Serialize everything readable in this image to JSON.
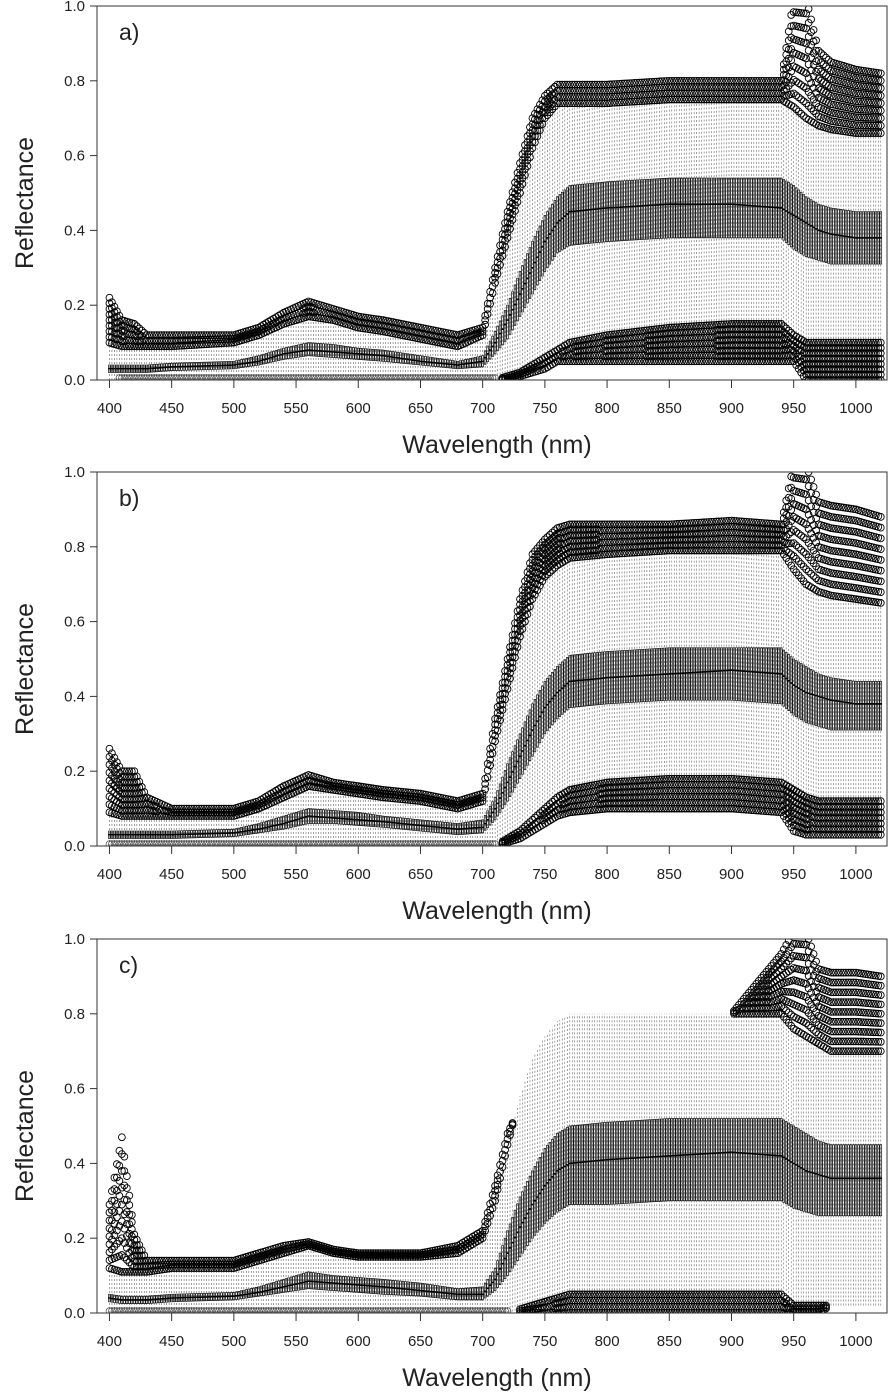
{
  "chart_data": [
    {
      "type": "box",
      "panel_label": "a)",
      "xlabel": "Wavelength (nm)",
      "ylabel": "Reflectance",
      "xlim": [
        390,
        1025
      ],
      "ylim": [
        0,
        1.0
      ],
      "x_ticks": [
        400,
        450,
        500,
        550,
        600,
        650,
        700,
        750,
        800,
        850,
        900,
        950,
        1000
      ],
      "y_ticks": [
        0.0,
        0.2,
        0.4,
        0.6,
        0.8,
        1.0
      ],
      "x_tick_labels": [
        "400",
        "450",
        "500",
        "550",
        "600",
        "650",
        "700",
        "750",
        "800",
        "850",
        "900",
        "950",
        "1000"
      ],
      "y_tick_labels": [
        "0.0",
        "0.2",
        "0.4",
        "0.6",
        "0.8",
        "1.0"
      ],
      "grid": false,
      "x": [
        400,
        410,
        420,
        430,
        450,
        500,
        520,
        540,
        560,
        580,
        600,
        620,
        650,
        680,
        700,
        710,
        720,
        730,
        740,
        750,
        760,
        770,
        800,
        850,
        900,
        940,
        950,
        960,
        970,
        980,
        1000,
        1020
      ],
      "median": [
        0.03,
        0.03,
        0.03,
        0.03,
        0.035,
        0.04,
        0.05,
        0.07,
        0.08,
        0.075,
        0.07,
        0.065,
        0.05,
        0.04,
        0.05,
        0.1,
        0.16,
        0.23,
        0.3,
        0.37,
        0.42,
        0.45,
        0.46,
        0.47,
        0.47,
        0.46,
        0.44,
        0.42,
        0.4,
        0.39,
        0.38,
        0.38
      ],
      "q1": [
        0.02,
        0.02,
        0.02,
        0.02,
        0.025,
        0.03,
        0.04,
        0.055,
        0.065,
        0.06,
        0.055,
        0.05,
        0.04,
        0.03,
        0.035,
        0.07,
        0.11,
        0.17,
        0.23,
        0.29,
        0.34,
        0.36,
        0.37,
        0.38,
        0.38,
        0.38,
        0.35,
        0.33,
        0.32,
        0.31,
        0.31,
        0.31
      ],
      "q3": [
        0.04,
        0.04,
        0.04,
        0.04,
        0.045,
        0.05,
        0.065,
        0.085,
        0.1,
        0.095,
        0.085,
        0.08,
        0.065,
        0.05,
        0.065,
        0.13,
        0.2,
        0.29,
        0.37,
        0.44,
        0.49,
        0.52,
        0.53,
        0.54,
        0.54,
        0.54,
        0.52,
        0.49,
        0.47,
        0.46,
        0.45,
        0.45
      ],
      "whisker_low": [
        0.0,
        0.0,
        0.0,
        0.0,
        0.0,
        0.0,
        0.0,
        0.0,
        0.0,
        0.0,
        0.0,
        0.0,
        0.0,
        0.0,
        0.0,
        0.0,
        0.01,
        0.02,
        0.04,
        0.06,
        0.08,
        0.1,
        0.12,
        0.14,
        0.15,
        0.15,
        0.12,
        0.1,
        0.1,
        0.1,
        0.1,
        0.1
      ],
      "whisker_high": [
        0.1,
        0.09,
        0.09,
        0.09,
        0.09,
        0.1,
        0.12,
        0.15,
        0.17,
        0.16,
        0.14,
        0.13,
        0.11,
        0.09,
        0.12,
        0.26,
        0.38,
        0.5,
        0.62,
        0.7,
        0.74,
        0.74,
        0.74,
        0.75,
        0.75,
        0.75,
        0.73,
        0.7,
        0.68,
        0.67,
        0.66,
        0.66
      ],
      "outliers_high": [
        0.22,
        0.16,
        0.15,
        0.12,
        0.12,
        0.12,
        0.14,
        0.18,
        0.21,
        0.19,
        0.17,
        0.16,
        0.14,
        0.12,
        0.14,
        0.3,
        0.45,
        0.58,
        0.7,
        0.76,
        0.79,
        0.79,
        0.79,
        0.8,
        0.8,
        0.8,
        1.02,
        1.02,
        0.88,
        0.85,
        0.83,
        0.82
      ],
      "outliers_low": [
        0.1,
        0.0,
        0.0,
        0.0,
        0.0,
        0.0,
        0.0,
        0.0,
        0.0,
        0.0,
        0.0,
        0.0,
        0.0,
        0.0,
        0.0,
        0.0,
        0.0,
        0.01,
        0.02,
        0.03,
        0.05,
        0.05,
        0.05,
        0.05,
        0.05,
        0.05,
        0.05,
        0.0,
        0.0,
        0.0,
        0.0,
        0.0
      ]
    },
    {
      "type": "box",
      "panel_label": "b)",
      "xlabel": "Wavelength (nm)",
      "ylabel": "Reflectance",
      "xlim": [
        390,
        1025
      ],
      "ylim": [
        0,
        1.0
      ],
      "x_ticks": [
        400,
        450,
        500,
        550,
        600,
        650,
        700,
        750,
        800,
        850,
        900,
        950,
        1000
      ],
      "y_ticks": [
        0.0,
        0.2,
        0.4,
        0.6,
        0.8,
        1.0
      ],
      "x_tick_labels": [
        "400",
        "450",
        "500",
        "550",
        "600",
        "650",
        "700",
        "750",
        "800",
        "850",
        "900",
        "950",
        "1000"
      ],
      "y_tick_labels": [
        "0.0",
        "0.2",
        "0.4",
        "0.6",
        "0.8",
        "1.0"
      ],
      "grid": false,
      "x": [
        400,
        410,
        420,
        430,
        450,
        500,
        520,
        540,
        560,
        580,
        600,
        620,
        650,
        680,
        700,
        710,
        720,
        730,
        740,
        750,
        760,
        770,
        800,
        850,
        900,
        940,
        950,
        960,
        970,
        980,
        1000,
        1020
      ],
      "median": [
        0.03,
        0.03,
        0.03,
        0.03,
        0.03,
        0.035,
        0.045,
        0.06,
        0.08,
        0.075,
        0.07,
        0.065,
        0.055,
        0.045,
        0.05,
        0.1,
        0.17,
        0.24,
        0.31,
        0.37,
        0.41,
        0.44,
        0.45,
        0.46,
        0.47,
        0.46,
        0.43,
        0.41,
        0.4,
        0.39,
        0.38,
        0.38
      ],
      "q1": [
        0.02,
        0.02,
        0.02,
        0.02,
        0.02,
        0.025,
        0.035,
        0.045,
        0.06,
        0.06,
        0.055,
        0.05,
        0.04,
        0.03,
        0.035,
        0.07,
        0.12,
        0.18,
        0.24,
        0.3,
        0.34,
        0.37,
        0.38,
        0.39,
        0.39,
        0.38,
        0.35,
        0.33,
        0.32,
        0.31,
        0.31,
        0.31
      ],
      "q3": [
        0.04,
        0.04,
        0.04,
        0.04,
        0.04,
        0.045,
        0.06,
        0.08,
        0.1,
        0.095,
        0.09,
        0.08,
        0.07,
        0.06,
        0.07,
        0.13,
        0.22,
        0.3,
        0.38,
        0.44,
        0.48,
        0.51,
        0.52,
        0.53,
        0.53,
        0.53,
        0.5,
        0.48,
        0.46,
        0.45,
        0.44,
        0.44
      ],
      "whisker_low": [
        0.0,
        0.0,
        0.0,
        0.0,
        0.0,
        0.0,
        0.0,
        0.0,
        0.0,
        0.0,
        0.0,
        0.0,
        0.0,
        0.0,
        0.0,
        0.0,
        0.02,
        0.04,
        0.07,
        0.1,
        0.13,
        0.15,
        0.17,
        0.18,
        0.18,
        0.17,
        0.15,
        0.13,
        0.12,
        0.12,
        0.12,
        0.12
      ],
      "whisker_high": [
        0.09,
        0.08,
        0.08,
        0.08,
        0.08,
        0.08,
        0.1,
        0.13,
        0.16,
        0.15,
        0.14,
        0.13,
        0.12,
        0.1,
        0.12,
        0.28,
        0.42,
        0.56,
        0.66,
        0.72,
        0.75,
        0.77,
        0.78,
        0.79,
        0.79,
        0.79,
        0.74,
        0.7,
        0.68,
        0.67,
        0.66,
        0.65
      ],
      "outliers_high": [
        0.26,
        0.2,
        0.2,
        0.13,
        0.1,
        0.1,
        0.12,
        0.16,
        0.19,
        0.17,
        0.16,
        0.15,
        0.14,
        0.12,
        0.14,
        0.34,
        0.5,
        0.66,
        0.78,
        0.82,
        0.85,
        0.86,
        0.86,
        0.86,
        0.87,
        0.86,
        1.02,
        1.02,
        0.92,
        0.91,
        0.9,
        0.88
      ],
      "outliers_low": [
        0.0,
        0.0,
        0.0,
        0.0,
        0.0,
        0.0,
        0.0,
        0.0,
        0.0,
        0.0,
        0.0,
        0.0,
        0.0,
        0.0,
        0.0,
        0.0,
        0.01,
        0.02,
        0.04,
        0.06,
        0.08,
        0.09,
        0.1,
        0.1,
        0.1,
        0.09,
        0.04,
        0.03,
        0.03,
        0.03,
        0.03,
        0.03
      ]
    },
    {
      "type": "box",
      "panel_label": "c)",
      "xlabel": "Wavelength (nm)",
      "ylabel": "Reflectance",
      "xlim": [
        390,
        1025
      ],
      "ylim": [
        0,
        1.0
      ],
      "x_ticks": [
        400,
        450,
        500,
        550,
        600,
        650,
        700,
        750,
        800,
        850,
        900,
        950,
        1000
      ],
      "y_ticks": [
        0.0,
        0.2,
        0.4,
        0.6,
        0.8,
        1.0
      ],
      "x_tick_labels": [
        "400",
        "450",
        "500",
        "550",
        "600",
        "650",
        "700",
        "750",
        "800",
        "850",
        "900",
        "950",
        "1000"
      ],
      "y_tick_labels": [
        "0.0",
        "0.2",
        "0.4",
        "0.6",
        "0.8",
        "1.0"
      ],
      "grid": false,
      "x": [
        400,
        410,
        420,
        430,
        450,
        500,
        520,
        540,
        560,
        580,
        600,
        620,
        650,
        680,
        700,
        710,
        720,
        730,
        740,
        750,
        760,
        770,
        800,
        850,
        900,
        940,
        950,
        960,
        970,
        980,
        1000,
        1020
      ],
      "median": [
        0.04,
        0.035,
        0.035,
        0.035,
        0.04,
        0.045,
        0.055,
        0.07,
        0.085,
        0.08,
        0.075,
        0.07,
        0.06,
        0.05,
        0.05,
        0.09,
        0.16,
        0.23,
        0.29,
        0.34,
        0.38,
        0.4,
        0.41,
        0.42,
        0.43,
        0.42,
        0.4,
        0.38,
        0.37,
        0.36,
        0.36,
        0.36
      ],
      "q1": [
        0.03,
        0.025,
        0.025,
        0.025,
        0.03,
        0.035,
        0.045,
        0.055,
        0.065,
        0.06,
        0.055,
        0.05,
        0.045,
        0.035,
        0.035,
        0.06,
        0.1,
        0.15,
        0.2,
        0.24,
        0.27,
        0.29,
        0.29,
        0.3,
        0.3,
        0.3,
        0.28,
        0.27,
        0.26,
        0.26,
        0.26,
        0.26
      ],
      "q3": [
        0.05,
        0.045,
        0.045,
        0.045,
        0.05,
        0.055,
        0.07,
        0.09,
        0.11,
        0.1,
        0.095,
        0.09,
        0.08,
        0.065,
        0.07,
        0.12,
        0.22,
        0.31,
        0.38,
        0.44,
        0.48,
        0.5,
        0.51,
        0.52,
        0.52,
        0.52,
        0.5,
        0.48,
        0.46,
        0.45,
        0.45,
        0.45
      ],
      "whisker_low": [
        0.0,
        0.0,
        0.0,
        0.0,
        0.0,
        0.0,
        0.0,
        0.0,
        0.0,
        0.0,
        0.0,
        0.0,
        0.0,
        0.0,
        0.0,
        0.0,
        0.0,
        0.01,
        0.02,
        0.03,
        0.04,
        0.05,
        0.05,
        0.05,
        0.05,
        0.05,
        0.02,
        0.02,
        0.02,
        0.02,
        0.02,
        0.02
      ],
      "whisker_high": [
        0.12,
        0.11,
        0.11,
        0.11,
        0.12,
        0.12,
        0.14,
        0.16,
        0.18,
        0.16,
        0.15,
        0.15,
        0.15,
        0.16,
        0.2,
        0.3,
        0.45,
        0.58,
        0.68,
        0.74,
        0.78,
        0.8,
        0.8,
        0.8,
        0.8,
        0.8,
        0.76,
        0.74,
        0.72,
        0.7,
        0.7,
        0.7
      ],
      "outliers_high": [
        0.29,
        0.47,
        0.21,
        0.14,
        0.14,
        0.14,
        0.16,
        0.18,
        0.19,
        0.17,
        0.16,
        0.16,
        0.16,
        0.18,
        0.22,
        0.34,
        0.48,
        0.55,
        0.6,
        0.74,
        0.78,
        0.8,
        0.8,
        0.8,
        0.8,
        0.96,
        1.02,
        1.02,
        0.92,
        0.91,
        0.91,
        0.9
      ],
      "outliers_low": [
        0.0,
        0.0,
        0.0,
        0.0,
        0.0,
        0.0,
        0.0,
        0.0,
        0.0,
        0.0,
        0.0,
        0.0,
        0.0,
        0.0,
        0.0,
        0.02,
        0.02,
        0.0,
        0.0,
        0.0,
        0.0,
        0.0,
        0.0,
        0.0,
        0.0,
        0.0,
        0.0,
        0.0,
        0.0,
        0.02,
        0.02,
        0.02
      ]
    }
  ]
}
